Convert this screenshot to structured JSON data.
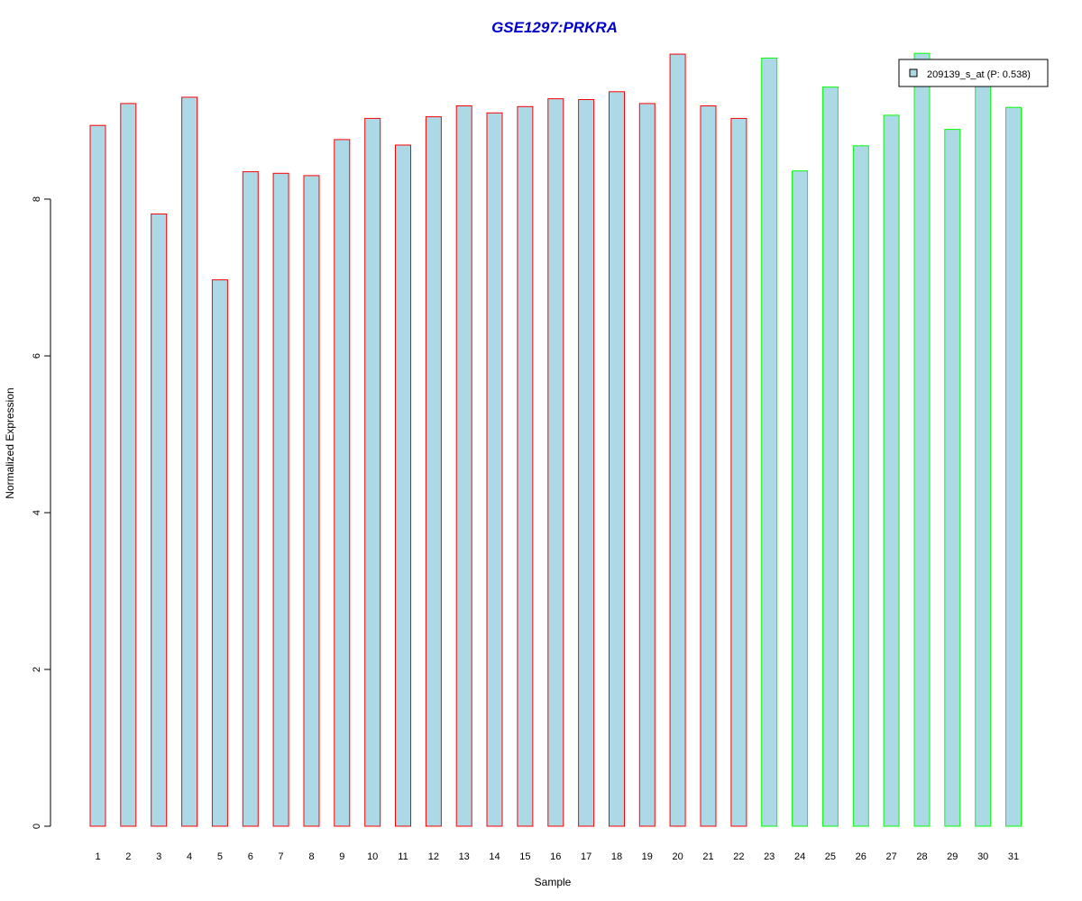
{
  "chart_data": {
    "type": "bar",
    "title": "GSE1297:PRKRA",
    "xlabel": "Sample",
    "ylabel": "Normalized Expression",
    "ylim": [
      0,
      9.85
    ],
    "yticks": [
      0,
      2,
      4,
      6,
      8
    ],
    "categories": [
      "1",
      "2",
      "3",
      "4",
      "5",
      "6",
      "7",
      "8",
      "9",
      "10",
      "11",
      "12",
      "13",
      "14",
      "15",
      "16",
      "17",
      "18",
      "19",
      "20",
      "21",
      "22",
      "23",
      "24",
      "25",
      "26",
      "27",
      "28",
      "29",
      "30",
      "31"
    ],
    "series": [
      {
        "name": "209139_s_at (P: 0.538)",
        "values": [
          8.94,
          9.22,
          7.81,
          9.3,
          6.97,
          8.35,
          8.33,
          8.3,
          8.76,
          9.03,
          8.69,
          9.05,
          9.19,
          9.1,
          9.18,
          9.28,
          9.27,
          9.37,
          9.22,
          9.85,
          9.19,
          9.03,
          9.8,
          8.36,
          9.43,
          8.68,
          9.07,
          9.86,
          8.89,
          9.54,
          9.17
        ]
      }
    ],
    "group_of_bar": [
      "a",
      "a",
      "a",
      "a",
      "a",
      "a",
      "a",
      "a",
      "a",
      "a",
      "a",
      "a",
      "a",
      "a",
      "a",
      "a",
      "a",
      "a",
      "a",
      "a",
      "a",
      "a",
      "b",
      "b",
      "b",
      "b",
      "b",
      "b",
      "b",
      "b",
      "b"
    ],
    "colors": {
      "bar_fill": "#add8e6",
      "group_a_border": "#ff0000",
      "group_b_border": "#00ff00",
      "title": "#0000cc",
      "axis": "#000000"
    },
    "legend": {
      "label": "209139_s_at (P: 0.538)",
      "placement": "top-right"
    },
    "grid": false
  }
}
